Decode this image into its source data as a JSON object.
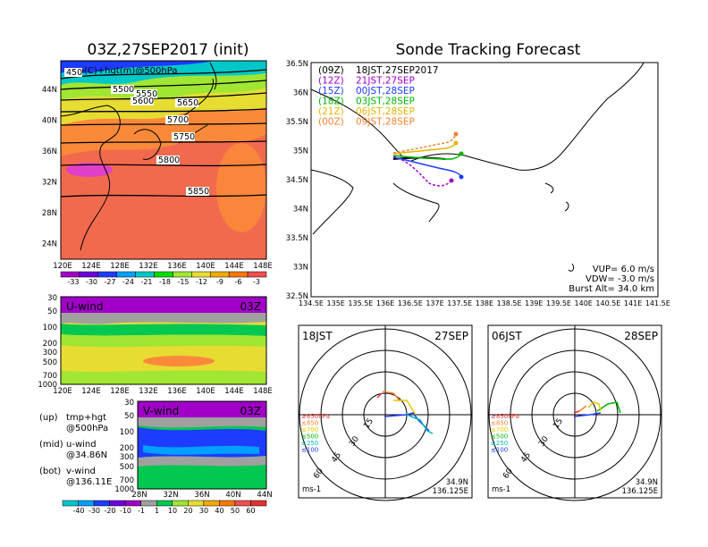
{
  "left_title": "03Z,27SEP2017 (init)",
  "right_title": "Sonde Tracking Forecast",
  "map500": {
    "label": "tmp(C)+hgt(m)@500hPa",
    "lat_ticks": [
      "44N",
      "40N",
      "36N",
      "32N",
      "28N",
      "24N"
    ],
    "lon_ticks": [
      "120E",
      "124E",
      "128E",
      "132E",
      "136E",
      "140E",
      "144E",
      "148E"
    ],
    "contours": [
      "5500",
      "5550",
      "5600",
      "5650",
      "5700",
      "5750",
      "5800",
      "5850",
      "450"
    ],
    "colorbar": [
      "-33",
      "-30",
      "-27",
      "-24",
      "-21",
      "-18",
      "-15",
      "-12",
      "-9",
      "-6",
      "-3"
    ],
    "colors": [
      "#a000c8",
      "#6e00dc",
      "#1e3cff",
      "#00a0ff",
      "#00c8c8",
      "#00dc00",
      "#a0e632",
      "#e6dc32",
      "#f0aa00",
      "#fa7800",
      "#f05050"
    ]
  },
  "uwind": {
    "label": "U-wind",
    "time": "03Z",
    "p_ticks": [
      "30",
      "50",
      "100",
      "200",
      "300",
      "500",
      "700",
      "1000"
    ],
    "lon_ticks": [
      "120E",
      "124E",
      "128E",
      "132E",
      "136E",
      "140E",
      "144E",
      "148E"
    ]
  },
  "vwind": {
    "label": "V-wind",
    "time": "03Z",
    "p_ticks": [
      "30",
      "50",
      "100",
      "200",
      "300",
      "500",
      "700",
      "1000"
    ],
    "lat_ticks": [
      "28N",
      "32N",
      "36N",
      "40N",
      "44N"
    ],
    "colorbar": [
      "-40",
      "-30",
      "-20",
      "-10",
      "-1",
      "1",
      "10",
      "20",
      "30",
      "40",
      "50",
      "60"
    ]
  },
  "legend_notes": [
    {
      "tag": "(up)",
      "text": "tmp+hgt",
      "sub": "@500hPa"
    },
    {
      "tag": "(mid)",
      "text": "u-wind",
      "sub": "@34.86N"
    },
    {
      "tag": "(bot)",
      "text": "v-wind",
      "sub": "@136.11E"
    }
  ],
  "track_map": {
    "lat_ticks": [
      "36.5N",
      "36N",
      "35.5N",
      "35N",
      "34.5N",
      "34N",
      "33.5N",
      "33N",
      "32.5N"
    ],
    "lon_ticks": [
      "134.5E",
      "135E",
      "135.5E",
      "136E",
      "136.5E",
      "137E",
      "137.5E",
      "138E",
      "138.5E",
      "139E",
      "139.5E",
      "140E",
      "140.5E",
      "141E",
      "141.5E"
    ],
    "launches": [
      {
        "tag": "(09Z)",
        "time": "18JST,27SEP2017",
        "color": "#000000"
      },
      {
        "tag": "(12Z)",
        "time": "21JST,27SEP",
        "color": "#a000c8"
      },
      {
        "tag": "(15Z)",
        "time": "00JST,28SEP",
        "color": "#1e3cff"
      },
      {
        "tag": "(18Z)",
        "time": "03JST,28SEP",
        "color": "#00b400"
      },
      {
        "tag": "(21Z)",
        "time": "06JST,28SEP",
        "color": "#e6b400"
      },
      {
        "tag": "(00Z)",
        "time": "09JST,28SEP",
        "color": "#f08232"
      }
    ],
    "params": [
      "VUP= 6.0 m/s",
      "VDW= -3.0 m/s",
      "Burst Alt= 34.0 km"
    ]
  },
  "hodo1": {
    "left": "18JST",
    "right": "27SEP",
    "rings": [
      "15",
      "30",
      "45",
      "60"
    ],
    "levels": [
      "≥850hPa",
      "≤850",
      "≤700",
      "≤500",
      "≤250",
      "≤100"
    ],
    "level_colors": [
      "#f03232",
      "#f08232",
      "#e6c800",
      "#00b400",
      "#00b4b4",
      "#1e3cff"
    ],
    "unit": "ms-1",
    "lat": "34.9N",
    "lon": "136.125E"
  },
  "hodo2": {
    "left": "06JST",
    "right": "28SEP",
    "rings": [
      "15",
      "30",
      "45",
      "60"
    ],
    "levels": [
      "≥850hPa",
      "≤850",
      "≤700",
      "≤500",
      "≤250",
      "≤100"
    ],
    "level_colors": [
      "#f03232",
      "#f08232",
      "#e6c800",
      "#00b400",
      "#00b4b4",
      "#1e3cff"
    ],
    "unit": "ms-1",
    "lat": "34.9N",
    "lon": "136.125E"
  }
}
